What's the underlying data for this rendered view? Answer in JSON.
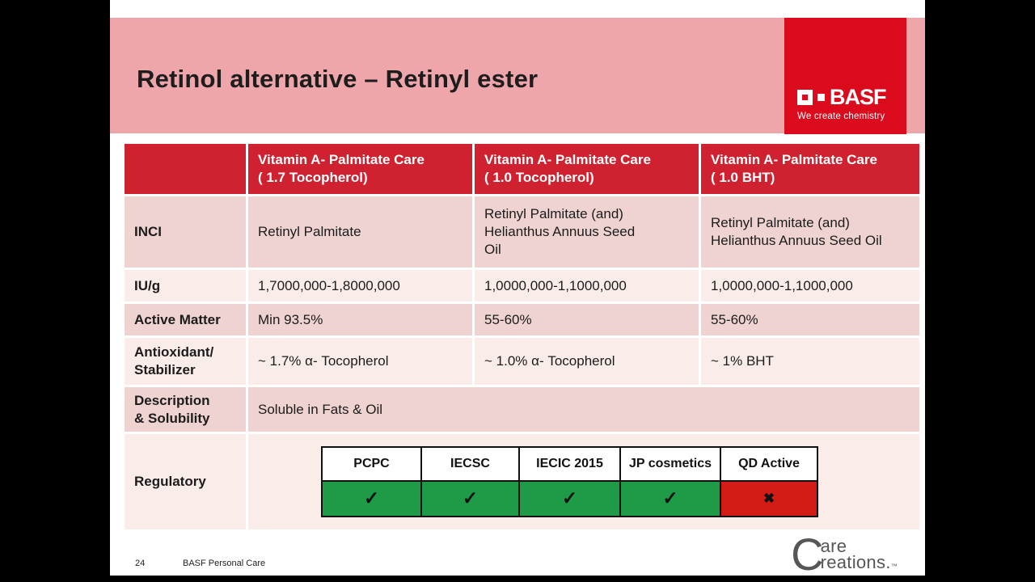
{
  "slide": {
    "title": "Retinol alternative – Retinyl ester",
    "page_number": "24",
    "footer": "BASF Personal Care"
  },
  "basf_logo": {
    "name": "BASF",
    "tagline": "We create chemistry"
  },
  "care_logo": {
    "initial": "C",
    "line1": "are",
    "line2": "reations.",
    "tm": "™"
  },
  "table": {
    "header": {
      "col1": "Vitamin A- Palmitate Care\n( 1.7 Tocopherol)",
      "col2": "Vitamin A- Palmitate Care\n( 1.0 Tocopherol)",
      "col3": "Vitamin A- Palmitate Care\n( 1.0 BHT)"
    },
    "rows": {
      "inci": {
        "label": "INCI",
        "col1": "Retinyl Palmitate",
        "col2": "Retinyl Palmitate (and)\nHelianthus Annuus Seed\nOil",
        "col3": "Retinyl Palmitate (and)\nHelianthus Annuus Seed Oil"
      },
      "iug": {
        "label": "IU/g",
        "col1": "1,7000,000-1,8000,000",
        "col2": "1,0000,000-1,1000,000",
        "col3": "1,0000,000-1,1000,000"
      },
      "active_matter": {
        "label": "Active Matter",
        "col1": "Min 93.5%",
        "col2": "55-60%",
        "col3": "55-60%"
      },
      "antioxidant": {
        "label": "Antioxidant/\nStabilizer",
        "col1": "~ 1.7% α- Tocopherol",
        "col2": "~ 1.0% α- Tocopherol",
        "col3": "~ 1% BHT"
      },
      "description": {
        "label": "Description\n& Solubility",
        "value": "Soluble in Fats & Oil"
      },
      "regulatory": {
        "label": "Regulatory"
      }
    }
  },
  "regulatory_table": {
    "headers": [
      "PCPC",
      "IECSC",
      "IECIC 2015",
      "JP cosmetics",
      "QD Active"
    ],
    "marks": [
      "✓",
      "✓",
      "✓",
      "✓",
      "✖"
    ]
  },
  "colors": {
    "band_pink": "#efa6aa",
    "header_red": "#cf212f",
    "basf_red": "#dc0a1d",
    "row_dark": "#eed3d0",
    "row_light": "#f9ece9",
    "pass_green": "#1f9b48",
    "fail_red": "#d41c16"
  }
}
